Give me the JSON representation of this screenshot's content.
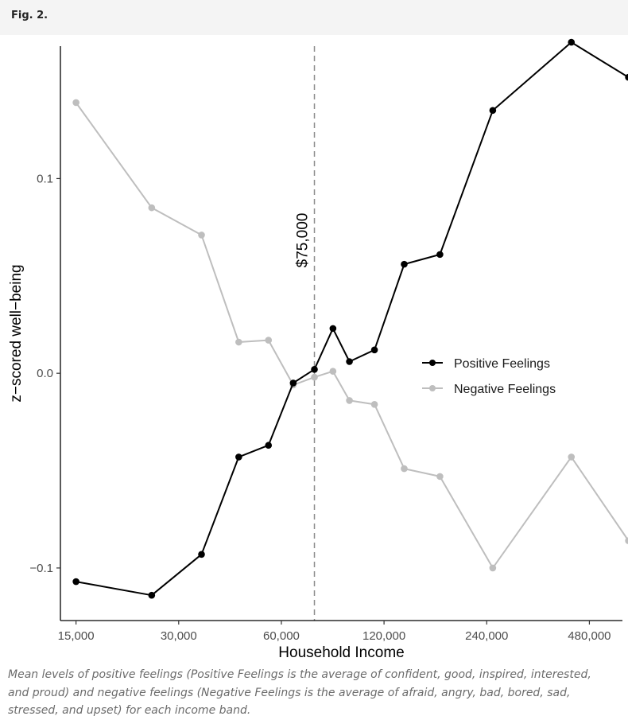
{
  "figure": {
    "label": "Fig. 2.",
    "caption": "Mean levels of positive feelings (Positive Feelings is the average of confident, good, inspired, interested, and proud) and negative feelings (Negative Feelings is the average of afraid, angry, bad, bored, sad, stressed, and upset) for each income band."
  },
  "chart_data": {
    "type": "line",
    "title": "",
    "xlabel": "Household Income",
    "ylabel": "z−scored well−being",
    "x_scale": "log2",
    "xlim": [
      13500,
      600000
    ],
    "ylim": [
      -0.127,
      0.168
    ],
    "x_ticks": [
      {
        "value": 15000,
        "label": "15,000"
      },
      {
        "value": 30000,
        "label": "30,000"
      },
      {
        "value": 60000,
        "label": "60,000"
      },
      {
        "value": 120000,
        "label": "120,000"
      },
      {
        "value": 240000,
        "label": "240,000"
      },
      {
        "value": 480000,
        "label": "480,000"
      }
    ],
    "y_ticks": [
      {
        "value": -0.1,
        "label": "−0.1"
      },
      {
        "value": 0.0,
        "label": "0.0"
      },
      {
        "value": 0.1,
        "label": "0.1"
      }
    ],
    "x": [
      15000,
      25000,
      35000,
      45000,
      55000,
      65000,
      75000,
      85000,
      95000,
      112500,
      137500,
      175000,
      250000,
      425000,
      625000
    ],
    "series": [
      {
        "name": "Positive Feelings",
        "color": "#000000",
        "values": [
          -0.107,
          -0.114,
          -0.093,
          -0.043,
          -0.037,
          -0.005,
          0.002,
          0.023,
          0.006,
          0.012,
          0.056,
          0.061,
          0.135,
          0.17,
          0.152
        ]
      },
      {
        "name": "Negative Feelings",
        "color": "#bebebe",
        "values": [
          0.139,
          0.085,
          0.071,
          0.016,
          0.017,
          -0.006,
          -0.002,
          0.001,
          -0.014,
          -0.016,
          -0.049,
          -0.053,
          -0.1,
          -0.043,
          -0.086
        ]
      }
    ],
    "reference_line": {
      "x": 75000,
      "label": "$75,000",
      "style": "dashed",
      "color": "#8c8c8c"
    },
    "legend": {
      "position": "right",
      "entries": [
        "Positive Feelings",
        "Negative Feelings"
      ]
    },
    "grid": false
  }
}
